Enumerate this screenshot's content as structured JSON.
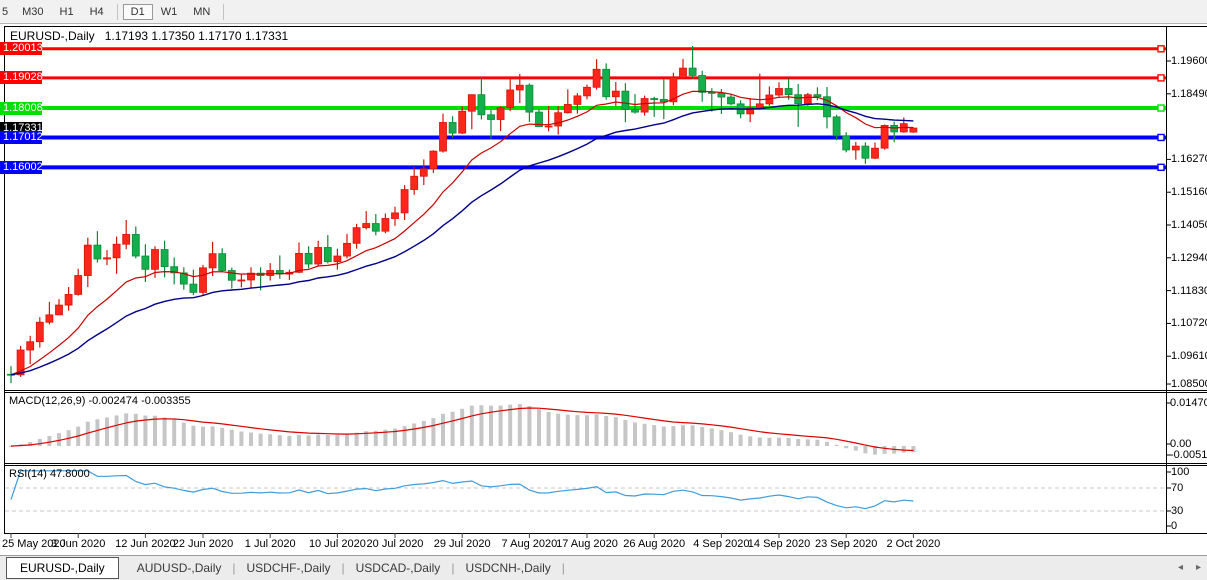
{
  "toolbar": {
    "items": [
      "5",
      "M30",
      "H1",
      "H4",
      "|",
      "D1",
      "W1",
      "MN",
      "|"
    ],
    "active": "D1"
  },
  "chart": {
    "title": "EURUSD-,Daily",
    "ohlc_text": "1.17193 1.17350 1.17170 1.17331"
  },
  "indicators": {
    "macd": {
      "label": "MACD(12,26,9) -0.002474 -0.003355"
    },
    "rsi": {
      "label": "RSI(14) 47.8000"
    }
  },
  "tabs": {
    "items": [
      "EURUSD-,Daily",
      "AUDUSD-,Daily",
      "USDCHF-,Daily",
      "USDCAD-,Daily",
      "USDCNH-,Daily"
    ],
    "active": 0,
    "scroll_left_icon": "◂",
    "scroll_right_icon": "▸"
  },
  "chart_data": [
    {
      "type": "candlestick",
      "symbol": "EURUSD-",
      "timeframe": "Daily",
      "last_bar": {
        "open": 1.17193,
        "high": 1.1735,
        "low": 1.1717,
        "close": 1.17331
      },
      "up_color": "#fc261c",
      "down_color": "#14ae4c",
      "up_stroke": "#d71607",
      "down_stroke": "#0d8a39",
      "y_axis_ticks": [
        "1.19600",
        "1.18490",
        "1.16270",
        "1.15160",
        "1.14050",
        "1.12940",
        "1.11830",
        "1.10720",
        "1.09610",
        "1.08500"
      ],
      "x_axis_labels": [
        {
          "idx": 0,
          "text": "25 May 2020"
        },
        {
          "idx": 7,
          "text": "3 Jun 2020"
        },
        {
          "idx": 14,
          "text": "12 Jun 2020"
        },
        {
          "idx": 20,
          "text": "22 Jun 2020"
        },
        {
          "idx": 27,
          "text": "1 Jul 2020"
        },
        {
          "idx": 34,
          "text": "10 Jul 2020"
        },
        {
          "idx": 40,
          "text": "20 Jul 2020"
        },
        {
          "idx": 47,
          "text": "29 Jul 2020"
        },
        {
          "idx": 54,
          "text": "7 Aug 2020"
        },
        {
          "idx": 60,
          "text": "17 Aug 2020"
        },
        {
          "idx": 67,
          "text": "26 Aug 2020"
        },
        {
          "idx": 74,
          "text": "4 Sep 2020"
        },
        {
          "idx": 80,
          "text": "14 Sep 2020"
        },
        {
          "idx": 87,
          "text": "23 Sep 2020"
        },
        {
          "idx": 94,
          "text": "2 Oct 2020"
        }
      ],
      "moving_averages": [
        {
          "period": 12,
          "method": "ema",
          "color": "#cc0000",
          "width": 1.2
        },
        {
          "period": 26,
          "method": "ema",
          "color": "#00008b",
          "width": 1.4
        }
      ],
      "levels": [
        {
          "label": "1.20013",
          "price": 1.20013,
          "color": "#ff0000",
          "width": 3
        },
        {
          "label": "1.19028",
          "price": 1.19028,
          "color": "#ff0000",
          "width": 3
        },
        {
          "label": "1.18008",
          "price": 1.18008,
          "color": "#00e000",
          "width": 4
        },
        {
          "label": "1.17012",
          "price": 1.17012,
          "color": "#0000ff",
          "width": 4
        },
        {
          "label": "1.16002",
          "price": 1.16002,
          "color": "#0000ff",
          "width": 4
        }
      ],
      "current_price": {
        "label": "1.17331",
        "price": 1.17331,
        "bg": "#000000"
      },
      "candles": [
        [
          1.09,
          1.0927,
          1.087,
          1.0898
        ],
        [
          1.0898,
          1.0996,
          1.0891,
          1.0982
        ],
        [
          1.0982,
          1.103,
          1.0934,
          1.101
        ],
        [
          1.101,
          1.1093,
          1.099,
          1.1076
        ],
        [
          1.1076,
          1.1145,
          1.1069,
          1.1101
        ],
        [
          1.1101,
          1.1154,
          1.11,
          1.1134
        ],
        [
          1.1134,
          1.1195,
          1.1115,
          1.117
        ],
        [
          1.117,
          1.1257,
          1.1166,
          1.1234
        ],
        [
          1.1234,
          1.1362,
          1.1195,
          1.1337
        ],
        [
          1.1337,
          1.1384,
          1.1278,
          1.129
        ],
        [
          1.129,
          1.132,
          1.1269,
          1.1294
        ],
        [
          1.1294,
          1.1366,
          1.124,
          1.134
        ],
        [
          1.134,
          1.1422,
          1.1323,
          1.1373
        ],
        [
          1.1373,
          1.14,
          1.1292,
          1.13
        ],
        [
          1.13,
          1.134,
          1.1212,
          1.1255
        ],
        [
          1.1255,
          1.1333,
          1.1226,
          1.1322
        ],
        [
          1.1322,
          1.1352,
          1.1228,
          1.1264
        ],
        [
          1.1264,
          1.1295,
          1.1204,
          1.1243
        ],
        [
          1.1243,
          1.1262,
          1.1186,
          1.1205
        ],
        [
          1.1205,
          1.1254,
          1.1168,
          1.1177
        ],
        [
          1.1177,
          1.127,
          1.1168,
          1.126
        ],
        [
          1.126,
          1.1348,
          1.1232,
          1.1308
        ],
        [
          1.1308,
          1.1326,
          1.1245,
          1.1251
        ],
        [
          1.1251,
          1.1261,
          1.119,
          1.1218
        ],
        [
          1.1218,
          1.1239,
          1.1194,
          1.1219
        ],
        [
          1.1219,
          1.1262,
          1.1191,
          1.1242
        ],
        [
          1.1242,
          1.1262,
          1.1184,
          1.1234
        ],
        [
          1.1234,
          1.1276,
          1.1217,
          1.1251
        ],
        [
          1.1251,
          1.1302,
          1.1223,
          1.1239
        ],
        [
          1.1239,
          1.1254,
          1.1219,
          1.1245
        ],
        [
          1.1245,
          1.1346,
          1.1242,
          1.1309
        ],
        [
          1.1309,
          1.1333,
          1.1259,
          1.1273
        ],
        [
          1.1273,
          1.1352,
          1.1266,
          1.1329
        ],
        [
          1.1329,
          1.1371,
          1.1275,
          1.1281
        ],
        [
          1.1281,
          1.1325,
          1.1254,
          1.13
        ],
        [
          1.13,
          1.1375,
          1.1292,
          1.1343
        ],
        [
          1.1343,
          1.1409,
          1.1325,
          1.1396
        ],
        [
          1.1396,
          1.1452,
          1.139,
          1.141
        ],
        [
          1.141,
          1.1442,
          1.137,
          1.1384
        ],
        [
          1.1384,
          1.1444,
          1.1377,
          1.1427
        ],
        [
          1.1427,
          1.1467,
          1.1402,
          1.1446
        ],
        [
          1.1446,
          1.154,
          1.1422,
          1.1525
        ],
        [
          1.1525,
          1.1601,
          1.1507,
          1.157
        ],
        [
          1.157,
          1.1627,
          1.154,
          1.1595
        ],
        [
          1.1595,
          1.1658,
          1.1581,
          1.1655
        ],
        [
          1.1655,
          1.1782,
          1.165,
          1.1752
        ],
        [
          1.1752,
          1.1773,
          1.17,
          1.1716
        ],
        [
          1.1716,
          1.1807,
          1.1713,
          1.179
        ],
        [
          1.179,
          1.1847,
          1.1729,
          1.1846
        ],
        [
          1.1846,
          1.1908,
          1.1762,
          1.1778
        ],
        [
          1.1778,
          1.1797,
          1.1696,
          1.1762
        ],
        [
          1.1762,
          1.1807,
          1.1723,
          1.1802
        ],
        [
          1.1802,
          1.1904,
          1.179,
          1.1862
        ],
        [
          1.1862,
          1.1916,
          1.1818,
          1.1878
        ],
        [
          1.1878,
          1.1884,
          1.1754,
          1.1787
        ],
        [
          1.1787,
          1.1798,
          1.1736,
          1.1738
        ],
        [
          1.1738,
          1.1808,
          1.1722,
          1.174
        ],
        [
          1.174,
          1.1808,
          1.1711,
          1.1785
        ],
        [
          1.1785,
          1.1864,
          1.1782,
          1.1813
        ],
        [
          1.1813,
          1.1851,
          1.1782,
          1.1842
        ],
        [
          1.1842,
          1.188,
          1.183,
          1.1871
        ],
        [
          1.1871,
          1.1966,
          1.1863,
          1.1932
        ],
        [
          1.1932,
          1.1952,
          1.1829,
          1.1839
        ],
        [
          1.1839,
          1.1889,
          1.1807,
          1.1858
        ],
        [
          1.1858,
          1.1885,
          1.1753,
          1.1796
        ],
        [
          1.1796,
          1.1848,
          1.1782,
          1.1787
        ],
        [
          1.1787,
          1.1843,
          1.1775,
          1.1833
        ],
        [
          1.1833,
          1.1839,
          1.1771,
          1.183
        ],
        [
          1.183,
          1.1899,
          1.1763,
          1.1822
        ],
        [
          1.1822,
          1.192,
          1.181,
          1.1904
        ],
        [
          1.1904,
          1.1967,
          1.1898,
          1.1936
        ],
        [
          1.1936,
          1.2011,
          1.1901,
          1.1911
        ],
        [
          1.1911,
          1.1927,
          1.1822,
          1.1854
        ],
        [
          1.1854,
          1.1868,
          1.1789,
          1.1852
        ],
        [
          1.1852,
          1.1865,
          1.1781,
          1.1838
        ],
        [
          1.1838,
          1.1849,
          1.181,
          1.1815
        ],
        [
          1.1815,
          1.1827,
          1.1766,
          1.1781
        ],
        [
          1.1781,
          1.1834,
          1.1753,
          1.1801
        ],
        [
          1.1801,
          1.1917,
          1.1795,
          1.1815
        ],
        [
          1.1815,
          1.1874,
          1.1808,
          1.1845
        ],
        [
          1.1845,
          1.1888,
          1.1839,
          1.1867
        ],
        [
          1.1867,
          1.19,
          1.1829,
          1.1846
        ],
        [
          1.1846,
          1.1882,
          1.1737,
          1.1816
        ],
        [
          1.1816,
          1.1852,
          1.1808,
          1.1846
        ],
        [
          1.1846,
          1.1871,
          1.1827,
          1.1839
        ],
        [
          1.1839,
          1.1872,
          1.1732,
          1.1771
        ],
        [
          1.1771,
          1.1778,
          1.1692,
          1.1707
        ],
        [
          1.1707,
          1.1719,
          1.1651,
          1.1659
        ],
        [
          1.1659,
          1.1686,
          1.1626,
          1.1672
        ],
        [
          1.1672,
          1.1685,
          1.1612,
          1.1631
        ],
        [
          1.1631,
          1.1684,
          1.1628,
          1.1665
        ],
        [
          1.1665,
          1.1745,
          1.166,
          1.1742
        ],
        [
          1.1742,
          1.1755,
          1.1685,
          1.172
        ],
        [
          1.172,
          1.1769,
          1.1717,
          1.1748
        ],
        [
          1.17193,
          1.1735,
          1.1717,
          1.17331
        ]
      ]
    },
    {
      "type": "bar",
      "name": "MACD",
      "params": "12,26,9",
      "main_value": -0.002474,
      "signal_value": -0.003355,
      "scale_labels": [
        "0.014706",
        "0.00",
        "-0.005113"
      ],
      "bar_color": "#c6c6c6",
      "signal_color": "#dd0000",
      "derived_from": "candles"
    },
    {
      "type": "line",
      "name": "RSI",
      "period": 14,
      "value": 47.8,
      "levels": [
        70,
        30
      ],
      "scale_labels": [
        "100",
        "70",
        "30",
        "0"
      ],
      "line_color": "#3e9ddd",
      "level_dash_color": "#c8c8c8",
      "derived_from": "candles"
    }
  ]
}
